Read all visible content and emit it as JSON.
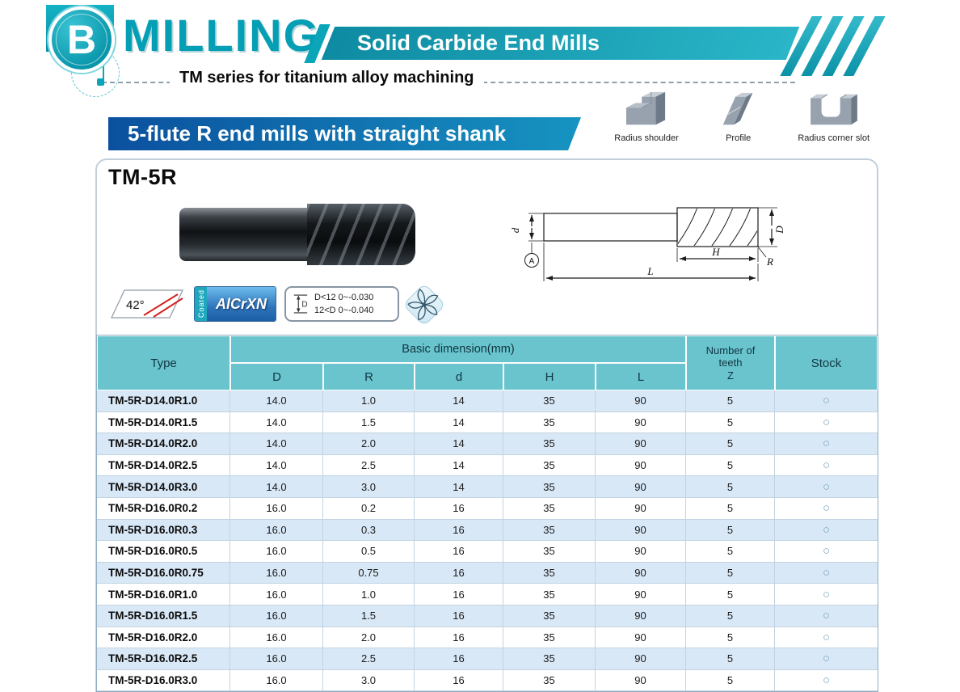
{
  "colors": {
    "teal_accent": "#049fb4",
    "banner_gradient": [
      "#0e8ba2",
      "#2ab6c8"
    ],
    "section_gradient": [
      "#0b509e",
      "#1694c1"
    ],
    "table_header_bg": "#69c4ce",
    "row_alt_bg": "#d9e8f7",
    "stock_circle": "#76a3bf"
  },
  "header": {
    "logo_letter": "B",
    "title": "MILLING",
    "banner": "Solid Carbide End Mills",
    "series": "TM series for titanium alloy machining"
  },
  "section": {
    "title": "5-flute R end mills with straight shank",
    "shape_icons": [
      {
        "label": "Radius shoulder"
      },
      {
        "label": "Profile"
      },
      {
        "label": "Radius corner slot"
      }
    ]
  },
  "product": {
    "name": "TM-5R",
    "features": {
      "helix_angle": "42°",
      "coated_label": "Coated",
      "coating": "AlCrXN",
      "tolerance_icon_letter": "D",
      "tolerance_line1": "D<12  0~-0.030",
      "tolerance_line2": "12<D  0~-0.040"
    },
    "diagram": {
      "d": "d",
      "datum": "A",
      "D": "D",
      "H": "H",
      "R": "R",
      "L": "L"
    }
  },
  "table": {
    "header": {
      "type": "Type",
      "group": "Basic dimension(mm)",
      "dims": [
        "D",
        "R",
        "d",
        "H",
        "L"
      ],
      "teeth": [
        "Number of",
        "teeth",
        "Z"
      ],
      "stock": "Stock"
    },
    "rows": [
      {
        "type": "TM-5R-D14.0R1.0",
        "D": "14.0",
        "R": "1.0",
        "d": "14",
        "H": "35",
        "L": "90",
        "Z": "5",
        "stock": "○"
      },
      {
        "type": "TM-5R-D14.0R1.5",
        "D": "14.0",
        "R": "1.5",
        "d": "14",
        "H": "35",
        "L": "90",
        "Z": "5",
        "stock": "○"
      },
      {
        "type": "TM-5R-D14.0R2.0",
        "D": "14.0",
        "R": "2.0",
        "d": "14",
        "H": "35",
        "L": "90",
        "Z": "5",
        "stock": "○"
      },
      {
        "type": "TM-5R-D14.0R2.5",
        "D": "14.0",
        "R": "2.5",
        "d": "14",
        "H": "35",
        "L": "90",
        "Z": "5",
        "stock": "○"
      },
      {
        "type": "TM-5R-D14.0R3.0",
        "D": "14.0",
        "R": "3.0",
        "d": "14",
        "H": "35",
        "L": "90",
        "Z": "5",
        "stock": "○"
      },
      {
        "type": "TM-5R-D16.0R0.2",
        "D": "16.0",
        "R": "0.2",
        "d": "16",
        "H": "35",
        "L": "90",
        "Z": "5",
        "stock": "○"
      },
      {
        "type": "TM-5R-D16.0R0.3",
        "D": "16.0",
        "R": "0.3",
        "d": "16",
        "H": "35",
        "L": "90",
        "Z": "5",
        "stock": "○"
      },
      {
        "type": "TM-5R-D16.0R0.5",
        "D": "16.0",
        "R": "0.5",
        "d": "16",
        "H": "35",
        "L": "90",
        "Z": "5",
        "stock": "○"
      },
      {
        "type": "TM-5R-D16.0R0.75",
        "D": "16.0",
        "R": "0.75",
        "d": "16",
        "H": "35",
        "L": "90",
        "Z": "5",
        "stock": "○"
      },
      {
        "type": "TM-5R-D16.0R1.0",
        "D": "16.0",
        "R": "1.0",
        "d": "16",
        "H": "35",
        "L": "90",
        "Z": "5",
        "stock": "○"
      },
      {
        "type": "TM-5R-D16.0R1.5",
        "D": "16.0",
        "R": "1.5",
        "d": "16",
        "H": "35",
        "L": "90",
        "Z": "5",
        "stock": "○"
      },
      {
        "type": "TM-5R-D16.0R2.0",
        "D": "16.0",
        "R": "2.0",
        "d": "16",
        "H": "35",
        "L": "90",
        "Z": "5",
        "stock": "○"
      },
      {
        "type": "TM-5R-D16.0R2.5",
        "D": "16.0",
        "R": "2.5",
        "d": "16",
        "H": "35",
        "L": "90",
        "Z": "5",
        "stock": "○"
      },
      {
        "type": "TM-5R-D16.0R3.0",
        "D": "16.0",
        "R": "3.0",
        "d": "16",
        "H": "35",
        "L": "90",
        "Z": "5",
        "stock": "○"
      }
    ]
  }
}
